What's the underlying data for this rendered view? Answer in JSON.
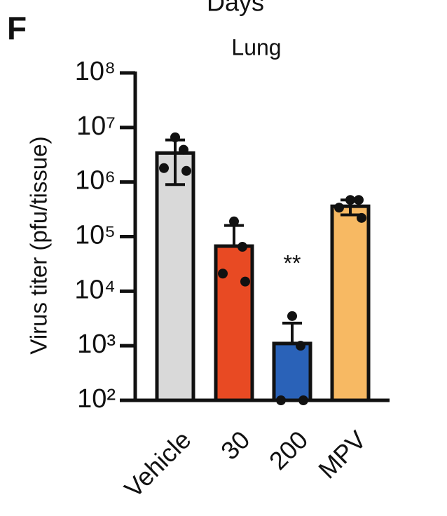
{
  "panel_label": "F",
  "cropped_heading": "Days",
  "chart_data": {
    "type": "bar",
    "title": "Lung",
    "y_label": "Virus titer (pfu/tissue)",
    "categories": [
      "Vehicle",
      "30",
      "200",
      "MPV"
    ],
    "values": [
      3400000,
      67000,
      1100,
      360000
    ],
    "errors": [
      2500000,
      93000,
      1500,
      110000
    ],
    "points": [
      [
        6600000,
        3900000,
        1800000,
        1600000
      ],
      [
        190000,
        65000,
        21000,
        15000
      ],
      [
        3500,
        1000,
        100,
        100
      ],
      [
        470000,
        470000,
        340000,
        220000
      ]
    ],
    "colors": [
      "#d9d9d9",
      "#e84a23",
      "#2a62b8",
      "#f7b963"
    ],
    "annotations": [
      {
        "category": 2,
        "text": "**"
      }
    ],
    "log_scale": true,
    "ylim": [
      100,
      100000000
    ],
    "yticks": [
      {
        "value": 100,
        "label": "10²"
      },
      {
        "value": 1000,
        "label": "10³"
      },
      {
        "value": 10000,
        "label": "10⁴"
      },
      {
        "value": 100000,
        "label": "10⁵"
      },
      {
        "value": 1000000,
        "label": "10⁶"
      },
      {
        "value": 10000000,
        "label": "10⁷"
      },
      {
        "value": 100000000,
        "label": "10⁸"
      }
    ]
  }
}
